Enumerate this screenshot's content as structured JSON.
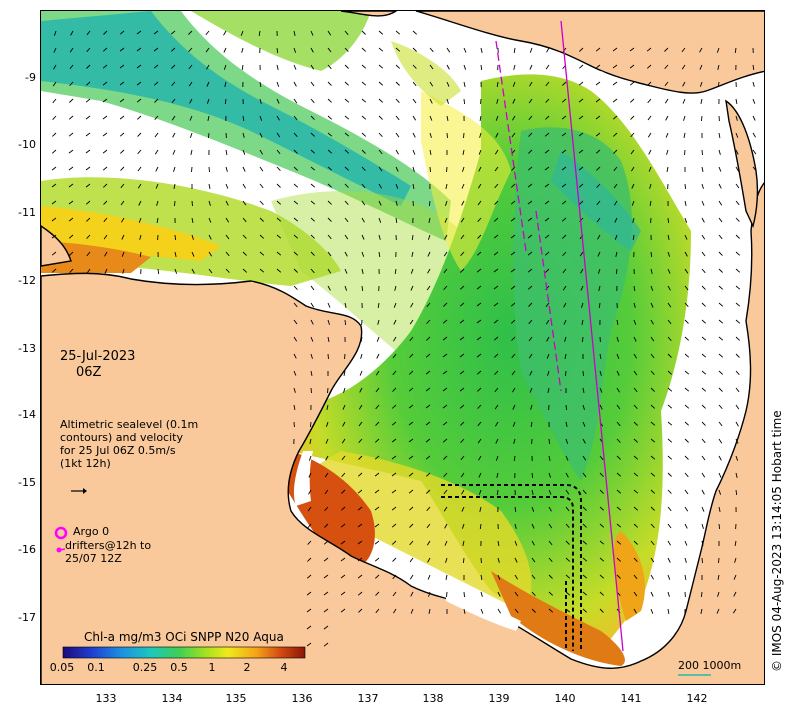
{
  "map": {
    "date": "25-Jul-2023",
    "time": "06Z",
    "altimetry_note": "Altimetric sealevel (0.1m contours) and velocity for 25 Jul 06Z 0.5m/s (1kt 12h)",
    "argo_label": "Argo 0",
    "drifter_label": "drifters@12h to 25/07 12Z",
    "colorbar_title": "Chl-a mg/m3 OCi SNPP N20 Aqua",
    "colorbar_ticks": [
      "0.05",
      "0.1",
      "0.25",
      "0.5",
      "1",
      "2",
      "4"
    ],
    "scale_label": "200  1000m",
    "copyright": "© IMOS 04-Aug-2023 13:14:05 Hobart time",
    "lat_ticks": [
      "-9",
      "-10",
      "-11",
      "-12",
      "-13",
      "-14",
      "-15",
      "-16",
      "-17"
    ],
    "lon_ticks": [
      "133",
      "134",
      "135",
      "136",
      "137",
      "138",
      "139",
      "140",
      "141",
      "142"
    ],
    "colors": {
      "land": "#f9c99b",
      "coast": "#000000",
      "argo": "#ff00ff",
      "track": "#cc00cc",
      "scale_bar": "#2fb6a6"
    }
  }
}
